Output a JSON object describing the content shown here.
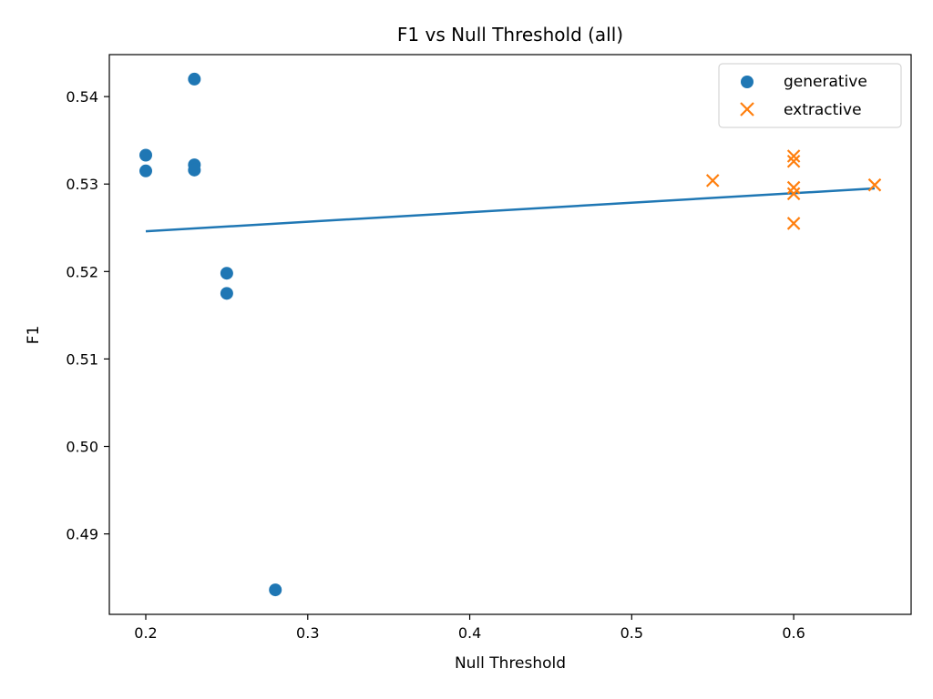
{
  "chart_data": {
    "type": "scatter",
    "title": "F1 vs Null Threshold (all)",
    "xlabel": "Null Threshold",
    "ylabel": "F1",
    "xlim": [
      0.1775,
      0.6725
    ],
    "ylim": [
      0.4808,
      0.5448
    ],
    "x_ticks": [
      0.2,
      0.3,
      0.4,
      0.5,
      0.6
    ],
    "x_tick_labels": [
      "0.2",
      "0.3",
      "0.4",
      "0.5",
      "0.6"
    ],
    "y_ticks": [
      0.49,
      0.5,
      0.51,
      0.52,
      0.53,
      0.54
    ],
    "y_tick_labels": [
      "0.49",
      "0.50",
      "0.51",
      "0.52",
      "0.53",
      "0.54"
    ],
    "legend_position": "top-right",
    "series": [
      {
        "name": "generative",
        "marker": "circle",
        "color": "#1f77b4",
        "points": [
          {
            "x": 0.2,
            "y": 0.5333
          },
          {
            "x": 0.2,
            "y": 0.5315
          },
          {
            "x": 0.23,
            "y": 0.542
          },
          {
            "x": 0.23,
            "y": 0.5322
          },
          {
            "x": 0.23,
            "y": 0.5316
          },
          {
            "x": 0.25,
            "y": 0.5198
          },
          {
            "x": 0.25,
            "y": 0.5175
          },
          {
            "x": 0.28,
            "y": 0.4836
          }
        ]
      },
      {
        "name": "extractive",
        "marker": "x",
        "color": "#ff7f0e",
        "points": [
          {
            "x": 0.55,
            "y": 0.5304
          },
          {
            "x": 0.6,
            "y": 0.5332
          },
          {
            "x": 0.6,
            "y": 0.5326
          },
          {
            "x": 0.6,
            "y": 0.5296
          },
          {
            "x": 0.6,
            "y": 0.5289
          },
          {
            "x": 0.6,
            "y": 0.5255
          },
          {
            "x": 0.65,
            "y": 0.5299
          }
        ]
      }
    ],
    "trend_line": {
      "color": "#1f77b4",
      "points": [
        {
          "x": 0.2,
          "y": 0.5246
        },
        {
          "x": 0.65,
          "y": 0.5295
        }
      ]
    }
  }
}
